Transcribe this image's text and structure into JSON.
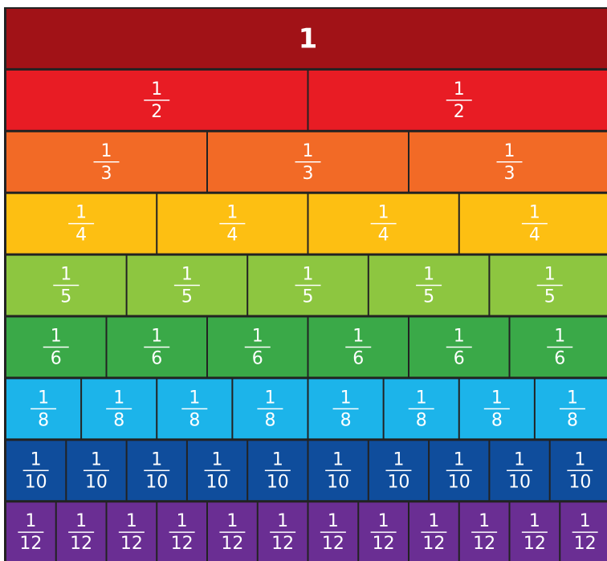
{
  "rows": [
    {
      "label": "1",
      "color": "#a11217"
    },
    {
      "numerator": "1",
      "denominator": "2",
      "color": "#e81c24"
    },
    {
      "numerator": "1",
      "denominator": "3",
      "color": "#f26a26"
    },
    {
      "numerator": "1",
      "denominator": "4",
      "color": "#fdbf12"
    },
    {
      "numerator": "1",
      "denominator": "5",
      "color": "#8dc640"
    },
    {
      "numerator": "1",
      "denominator": "6",
      "color": "#3aa948"
    },
    {
      "numerator": "1",
      "denominator": "8",
      "color": "#1cb4ea"
    },
    {
      "numerator": "1",
      "denominator": "10",
      "color": "#0f4d9c"
    },
    {
      "numerator": "1",
      "denominator": "12",
      "color": "#6a2e93"
    }
  ]
}
